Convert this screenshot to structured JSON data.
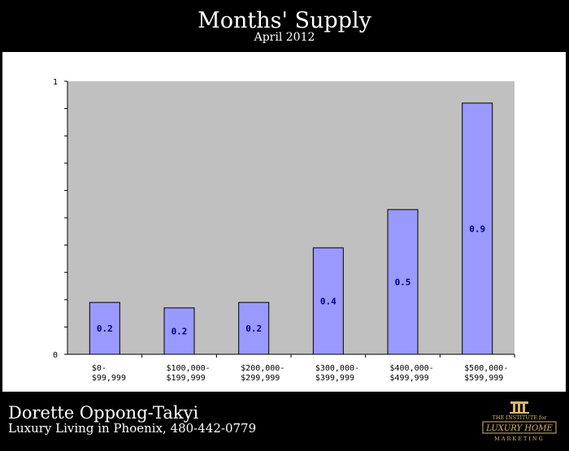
{
  "header": {
    "title": "Months' Supply",
    "subtitle": "April 2012"
  },
  "footer": {
    "name": "Dorette Oppong-Takyi",
    "info": "Luxury Living in Phoenix, 480-442-0779",
    "logo": {
      "line1": "THE INSTITUTE for",
      "line2": "LUXURY HOME",
      "line3": "MARKETING"
    }
  },
  "chart_data": {
    "type": "bar",
    "categories": [
      [
        "$0-",
        "$99,999"
      ],
      [
        "$100,000-",
        "$199,999"
      ],
      [
        "$200,000-",
        "$299,999"
      ],
      [
        "$300,000-",
        "$399,999"
      ],
      [
        "$400,000-",
        "$499,999"
      ],
      [
        "$500,000-",
        "$599,999"
      ]
    ],
    "values": [
      0.19,
      0.17,
      0.19,
      0.39,
      0.53,
      0.92
    ],
    "data_labels": [
      "0.2",
      "0.2",
      "0.2",
      "0.4",
      "0.5",
      "0.9"
    ],
    "ylim": [
      0,
      1
    ],
    "yticks": [
      "0",
      "1"
    ],
    "grid": true,
    "colors": {
      "bar": "#9999ff",
      "plot_bg": "#c0c0c0",
      "label": "#000080"
    }
  }
}
